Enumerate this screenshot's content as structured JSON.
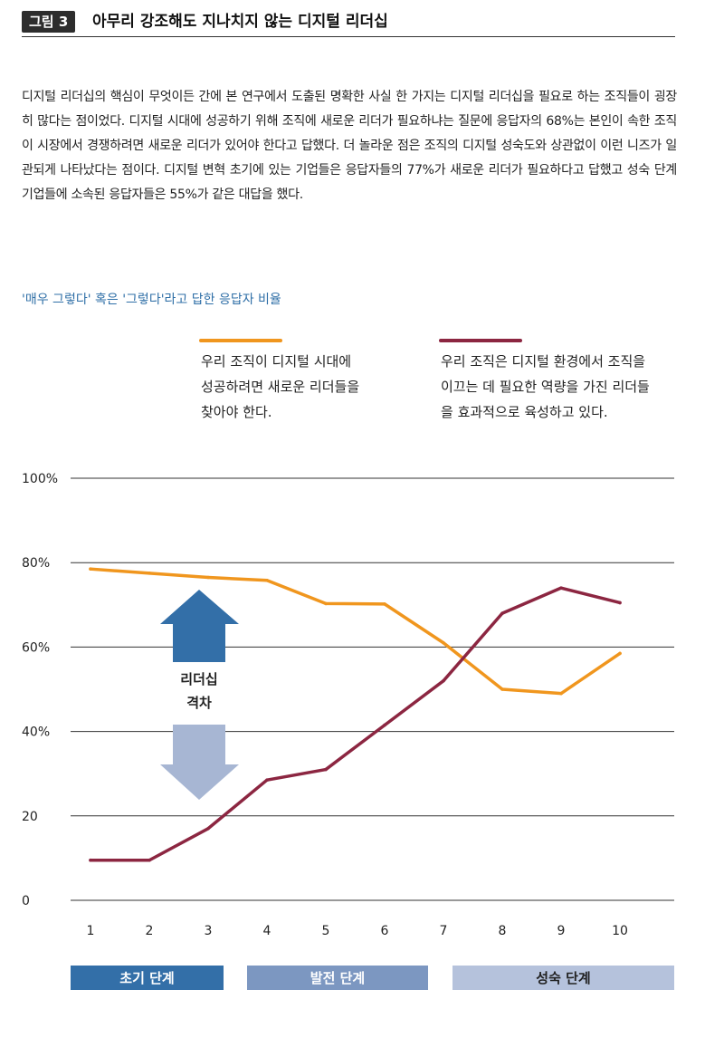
{
  "header": {
    "badge": "그림 3",
    "title": "아무리 강조해도 지나치지 않는 디지털 리더십"
  },
  "body_text": "디지털 리더십의 핵심이 무엇이든 간에 본 연구에서 도출된 명확한 사실 한 가지는 디지털 리더십을 필요로 하는 조직들이 굉장히 많다는 점이었다. 디지털 시대에 성공하기 위해 조직에 새로운 리더가 필요하냐는 질문에 응답자의 68%는 본인이 속한 조직이 시장에서 경쟁하려면 새로운 리더가 있어야 한다고 답했다. 더 놀라운 점은 조직의 디지털 성숙도와 상관없이 이런 니즈가 일관되게 나타났다는 점이다. 디지털 변혁 초기에 있는 기업들은 응답자들의 77%가 새로운 리더가 필요하다고 답했고 성숙 단계 기업들에 소속된 응답자들은 55%가 같은 대답을 했다.",
  "colors": {
    "orange": "#f0961e",
    "maroon": "#8c2641",
    "subtitle": "#2f6fa7",
    "arrow_up": "#336fa8",
    "arrow_down": "#a7b6d3",
    "stage_early": "#336fa8",
    "stage_dev": "#7c97c1",
    "stage_mature": "#b5c2dc"
  },
  "chart_data": {
    "type": "line",
    "title": "'매우 그렇다' 혹은 '그렇다'라고 답한 응답자 비율",
    "x": [
      1,
      2,
      3,
      4,
      5,
      6,
      7,
      8,
      9,
      10
    ],
    "x_tick_labels": [
      "1",
      "2",
      "3",
      "4",
      "5",
      "6",
      "7",
      "8",
      "9",
      "10"
    ],
    "y_ticks": [
      0,
      20,
      40,
      60,
      80,
      100
    ],
    "y_tick_labels": [
      "0",
      "20",
      "40%",
      "60%",
      "80%",
      "100%"
    ],
    "ylim": [
      0,
      100
    ],
    "grid": true,
    "series": [
      {
        "name": "우리 조직이 디지털 시대에 성공하려면 새로운 리더들을 찾아야 한다.",
        "legend_lines": [
          "우리 조직이 디지털 시대에",
          "성공하려면 새로운 리더들을",
          "찾아야 한다."
        ],
        "color": "#f0961e",
        "values": [
          78.5,
          77.5,
          76.5,
          75.8,
          70.3,
          70.2,
          61,
          50,
          49,
          58.5
        ]
      },
      {
        "name": "우리 조직은 디지털 환경에서 조직을 이끄는 데 필요한 역량을 가진 리더들을 효과적으로 육성하고 있다.",
        "legend_lines": [
          "우리 조직은 디지털 환경에서 조직을",
          "이끄는 데 필요한 역량을 가진 리더들",
          "을 효과적으로 육성하고 있다."
        ],
        "color": "#8c2641",
        "values": [
          9.5,
          9.5,
          17,
          28.5,
          31,
          41.5,
          52,
          68,
          74,
          70.5
        ]
      }
    ],
    "annotation_lines": [
      "리더십",
      "격차"
    ],
    "stages": [
      {
        "label": "초기 단계",
        "from": 1,
        "to": 3
      },
      {
        "label": "발전 단계",
        "from": 4,
        "to": 6
      },
      {
        "label": "성숙 단계",
        "from": 7,
        "to": 10
      }
    ]
  }
}
